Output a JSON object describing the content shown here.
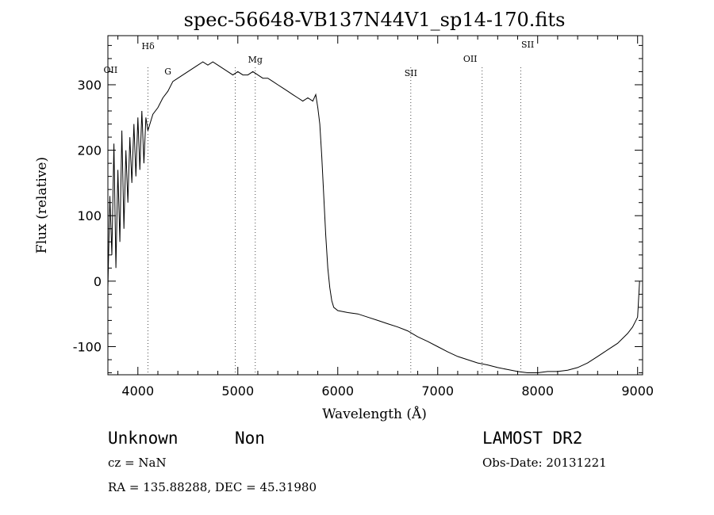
{
  "chart_data": {
    "type": "line",
    "title": "spec-56648-VB137N44V1_sp14-170.fits",
    "xlabel": "Wavelength (Å)",
    "ylabel": "Flux (relative)",
    "xlim": [
      3700,
      9050
    ],
    "ylim": [
      -143,
      375
    ],
    "xticks": [
      4000,
      5000,
      6000,
      7000,
      8000,
      9000
    ],
    "yticks": [
      -100,
      0,
      100,
      200,
      300
    ],
    "grid": false,
    "series": [
      {
        "x": [
          3700,
          3720,
          3740,
          3760,
          3780,
          3800,
          3820,
          3840,
          3860,
          3880,
          3900,
          3920,
          3940,
          3960,
          3980,
          4000,
          4020,
          4040,
          4060,
          4080,
          4100,
          4150,
          4200,
          4250,
          4300,
          4350,
          4400,
          4450,
          4500,
          4550,
          4600,
          4650,
          4700,
          4750,
          4800,
          4850,
          4900,
          4950,
          5000,
          5050,
          5100,
          5150,
          5200,
          5250,
          5300,
          5350,
          5400,
          5450,
          5500,
          5550,
          5600,
          5650,
          5700,
          5750,
          5780,
          5800,
          5820,
          5840,
          5860,
          5880,
          5900,
          5920,
          5940,
          5960,
          6000,
          6100,
          6200,
          6300,
          6400,
          6500,
          6600,
          6700,
          6800,
          6900,
          7000,
          7100,
          7200,
          7300,
          7400,
          7500,
          7600,
          7700,
          7800,
          7900,
          8000,
          8100,
          8200,
          8300,
          8400,
          8500,
          8600,
          8700,
          8800,
          8900,
          8950,
          9000,
          9020
        ],
        "y": [
          -10,
          130,
          40,
          210,
          20,
          170,
          60,
          230,
          80,
          200,
          120,
          220,
          150,
          240,
          160,
          250,
          170,
          260,
          180,
          250,
          230,
          255,
          265,
          280,
          290,
          305,
          310,
          315,
          320,
          325,
          330,
          335,
          330,
          335,
          330,
          325,
          320,
          315,
          320,
          315,
          315,
          320,
          315,
          310,
          310,
          305,
          300,
          295,
          290,
          285,
          280,
          275,
          280,
          275,
          285,
          265,
          240,
          190,
          130,
          70,
          20,
          -10,
          -30,
          -40,
          -45,
          -48,
          -50,
          -55,
          -60,
          -65,
          -70,
          -76,
          -85,
          -92,
          -100,
          -108,
          -115,
          -120,
          -125,
          -128,
          -132,
          -135,
          -138,
          -140,
          -140,
          -138,
          -138,
          -136,
          -132,
          -125,
          -115,
          -105,
          -95,
          -80,
          -70,
          -55,
          0
        ]
      }
    ],
    "annotations": [
      {
        "label": "OII",
        "x": 3727
      },
      {
        "label": "Hδ",
        "x": 4102
      },
      {
        "label": "G",
        "x": 4300
      },
      {
        "label": "Mg",
        "x": 5175
      },
      {
        "label": "SII",
        "x": 6731
      },
      {
        "label": "OII",
        "x": 7325
      },
      {
        "label": "SII",
        "x": 7900
      }
    ],
    "vlines": [
      4102,
      4975,
      5175,
      6731,
      7445,
      7830
    ]
  },
  "footer": {
    "object_class": "Unknown",
    "object_subclass": "Non",
    "redshift": "cz = NaN",
    "coords": "RA = 135.88288, DEC =  45.31980",
    "survey": "LAMOST DR2",
    "obs_date": "Obs-Date: 20131221"
  }
}
